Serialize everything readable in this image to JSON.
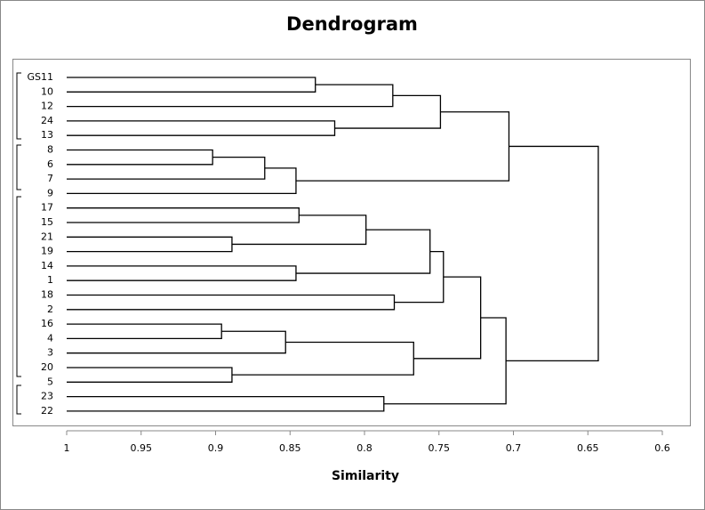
{
  "chart_data": {
    "type": "dendrogram",
    "title": "Dendrogram",
    "x_label": "Similarity",
    "xlim": [
      1,
      0.6
    ],
    "xticks": [
      1,
      0.95,
      0.9,
      0.85,
      0.8,
      0.75,
      0.7,
      0.65,
      0.6
    ],
    "color": "#000000",
    "tree": {
      "height": 0.643,
      "children": [
        {
          "height": 0.703,
          "children": [
            {
              "height": 0.749,
              "children": [
                {
                  "height": 0.781,
                  "children": [
                    {
                      "height": 0.833,
                      "children": [
                        {
                          "label": "GS11"
                        },
                        {
                          "label": "10"
                        }
                      ]
                    },
                    {
                      "label": "12"
                    }
                  ]
                },
                {
                  "height": 0.82,
                  "children": [
                    {
                      "label": "24"
                    },
                    {
                      "label": "13"
                    }
                  ]
                }
              ]
            },
            {
              "height": 0.846,
              "children": [
                {
                  "height": 0.867,
                  "children": [
                    {
                      "height": 0.902,
                      "children": [
                        {
                          "label": "8"
                        },
                        {
                          "label": "6"
                        }
                      ]
                    },
                    {
                      "label": "7"
                    }
                  ]
                },
                {
                  "label": "9"
                }
              ]
            }
          ]
        },
        {
          "height": 0.705,
          "children": [
            {
              "height": 0.722,
              "children": [
                {
                  "height": 0.747,
                  "children": [
                    {
                      "height": 0.756,
                      "children": [
                        {
                          "height": 0.799,
                          "children": [
                            {
                              "height": 0.844,
                              "children": [
                                {
                                  "label": "17"
                                },
                                {
                                  "label": "15"
                                }
                              ]
                            },
                            {
                              "height": 0.889,
                              "children": [
                                {
                                  "label": "21"
                                },
                                {
                                  "label": "19"
                                }
                              ]
                            }
                          ]
                        },
                        {
                          "height": 0.846,
                          "children": [
                            {
                              "label": "14"
                            },
                            {
                              "label": "1"
                            }
                          ]
                        }
                      ]
                    },
                    {
                      "height": 0.78,
                      "children": [
                        {
                          "label": "18"
                        },
                        {
                          "label": "2"
                        }
                      ]
                    }
                  ]
                },
                {
                  "height": 0.767,
                  "children": [
                    {
                      "height": 0.853,
                      "children": [
                        {
                          "height": 0.896,
                          "children": [
                            {
                              "label": "16"
                            },
                            {
                              "label": "4"
                            }
                          ]
                        },
                        {
                          "label": "3"
                        }
                      ]
                    },
                    {
                      "height": 0.889,
                      "children": [
                        {
                          "label": "20"
                        },
                        {
                          "label": "5"
                        }
                      ]
                    }
                  ]
                }
              ]
            },
            {
              "height": 0.787,
              "children": [
                {
                  "label": "23"
                },
                {
                  "label": "22"
                }
              ]
            }
          ]
        }
      ]
    }
  }
}
